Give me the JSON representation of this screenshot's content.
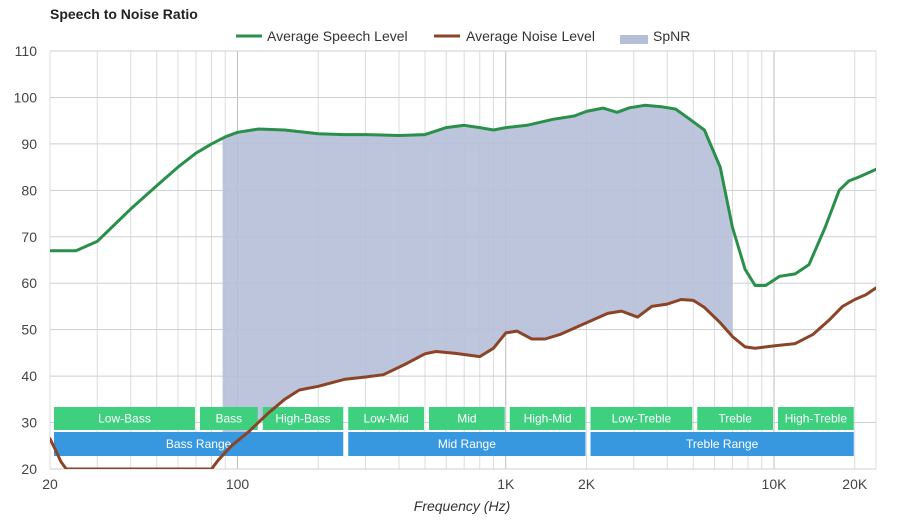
{
  "chart_data": {
    "type": "line",
    "title": "Speech to Noise Ratio",
    "xlabel": "Frequency (Hz)",
    "ylabel": "",
    "x_scale": "log",
    "xlim": [
      20,
      24000
    ],
    "ylim": [
      20,
      110
    ],
    "y_ticks": [
      20,
      30,
      40,
      50,
      60,
      70,
      80,
      90,
      100,
      110
    ],
    "x_tick_labels": [
      {
        "value": 20,
        "label": "20"
      },
      {
        "value": 100,
        "label": "100"
      },
      {
        "value": 1000,
        "label": "1K"
      },
      {
        "value": 2000,
        "label": "2K"
      },
      {
        "value": 10000,
        "label": "10K"
      },
      {
        "value": 20000,
        "label": "20K"
      }
    ],
    "grid": true,
    "legend_position": "top-center",
    "legend": [
      {
        "name": "Average Speech Level",
        "kind": "line",
        "color": "#2a8f4a"
      },
      {
        "name": "Average Noise Level",
        "kind": "line",
        "color": "#8b4428"
      },
      {
        "name": "SpNR",
        "kind": "area",
        "color": "#b5bfd8"
      }
    ],
    "series": [
      {
        "name": "Average Speech Level",
        "color": "#2a8f4a",
        "points": [
          [
            20,
            67
          ],
          [
            25,
            67
          ],
          [
            30,
            69
          ],
          [
            40,
            76
          ],
          [
            50,
            81
          ],
          [
            60,
            85
          ],
          [
            70,
            88
          ],
          [
            80,
            90
          ],
          [
            90,
            91.5
          ],
          [
            100,
            92.5
          ],
          [
            120,
            93.2
          ],
          [
            150,
            93
          ],
          [
            200,
            92.2
          ],
          [
            250,
            92
          ],
          [
            300,
            92
          ],
          [
            400,
            91.8
          ],
          [
            500,
            92
          ],
          [
            600,
            93.5
          ],
          [
            700,
            94
          ],
          [
            800,
            93.5
          ],
          [
            900,
            93
          ],
          [
            1000,
            93.5
          ],
          [
            1200,
            94
          ],
          [
            1500,
            95.3
          ],
          [
            1800,
            96
          ],
          [
            2000,
            97
          ],
          [
            2300,
            97.7
          ],
          [
            2600,
            96.8
          ],
          [
            2900,
            97.8
          ],
          [
            3300,
            98.3
          ],
          [
            3800,
            98
          ],
          [
            4300,
            97.5
          ],
          [
            4800,
            95.5
          ],
          [
            5500,
            93
          ],
          [
            6300,
            85
          ],
          [
            7000,
            72
          ],
          [
            7800,
            63
          ],
          [
            8500,
            59.5
          ],
          [
            9300,
            59.5
          ],
          [
            10500,
            61.5
          ],
          [
            12000,
            62
          ],
          [
            13500,
            64
          ],
          [
            15500,
            72
          ],
          [
            17500,
            80
          ],
          [
            19000,
            82
          ],
          [
            21000,
            83
          ],
          [
            24000,
            84.5
          ]
        ]
      },
      {
        "name": "Average Noise Level",
        "color": "#8b4428",
        "points": [
          [
            20,
            26.5
          ],
          [
            21,
            24
          ],
          [
            22,
            21.5
          ],
          [
            23,
            20
          ],
          [
            80,
            20
          ],
          [
            85,
            22
          ],
          [
            95,
            25
          ],
          [
            110,
            28
          ],
          [
            130,
            32
          ],
          [
            150,
            35
          ],
          [
            170,
            37
          ],
          [
            200,
            37.8
          ],
          [
            250,
            39.3
          ],
          [
            300,
            39.8
          ],
          [
            350,
            40.3
          ],
          [
            420,
            42.5
          ],
          [
            500,
            44.8
          ],
          [
            550,
            45.3
          ],
          [
            650,
            44.9
          ],
          [
            800,
            44.2
          ],
          [
            900,
            46
          ],
          [
            1000,
            49.3
          ],
          [
            1100,
            49.7
          ],
          [
            1250,
            48
          ],
          [
            1400,
            48
          ],
          [
            1600,
            49
          ],
          [
            2000,
            51.5
          ],
          [
            2400,
            53.5
          ],
          [
            2700,
            54
          ],
          [
            3100,
            52.7
          ],
          [
            3500,
            55
          ],
          [
            4000,
            55.5
          ],
          [
            4500,
            56.5
          ],
          [
            5000,
            56.3
          ],
          [
            5500,
            54.8
          ],
          [
            6300,
            51.5
          ],
          [
            7000,
            48.5
          ],
          [
            7800,
            46.3
          ],
          [
            8500,
            46
          ],
          [
            10000,
            46.5
          ],
          [
            12000,
            47
          ],
          [
            14000,
            49
          ],
          [
            16000,
            52
          ],
          [
            18000,
            55
          ],
          [
            20000,
            56.5
          ],
          [
            22000,
            57.5
          ],
          [
            24000,
            59
          ]
        ]
      }
    ],
    "spnr_range": [
      88,
      7000
    ],
    "bands": {
      "row1": [
        {
          "label": "Low-Bass",
          "from": 20,
          "to": 70
        },
        {
          "label": "Bass",
          "from": 70,
          "to": 120
        },
        {
          "label": "High-Bass",
          "from": 120,
          "to": 250
        },
        {
          "label": "Low-Mid",
          "from": 250,
          "to": 500
        },
        {
          "label": "Mid",
          "from": 500,
          "to": 1000
        },
        {
          "label": "High-Mid",
          "from": 1000,
          "to": 2000
        },
        {
          "label": "Low-Treble",
          "from": 2000,
          "to": 5000
        },
        {
          "label": "Treble",
          "from": 5000,
          "to": 10000
        },
        {
          "label": "High-Treble",
          "from": 10000,
          "to": 20000
        }
      ],
      "row2": [
        {
          "label": "Bass Range",
          "from": 20,
          "to": 250
        },
        {
          "label": "Mid Range",
          "from": 250,
          "to": 2000
        },
        {
          "label": "Treble Range",
          "from": 2000,
          "to": 20000
        }
      ],
      "row1_color": "#3ecf7f",
      "row2_color": "#3798e0"
    }
  }
}
